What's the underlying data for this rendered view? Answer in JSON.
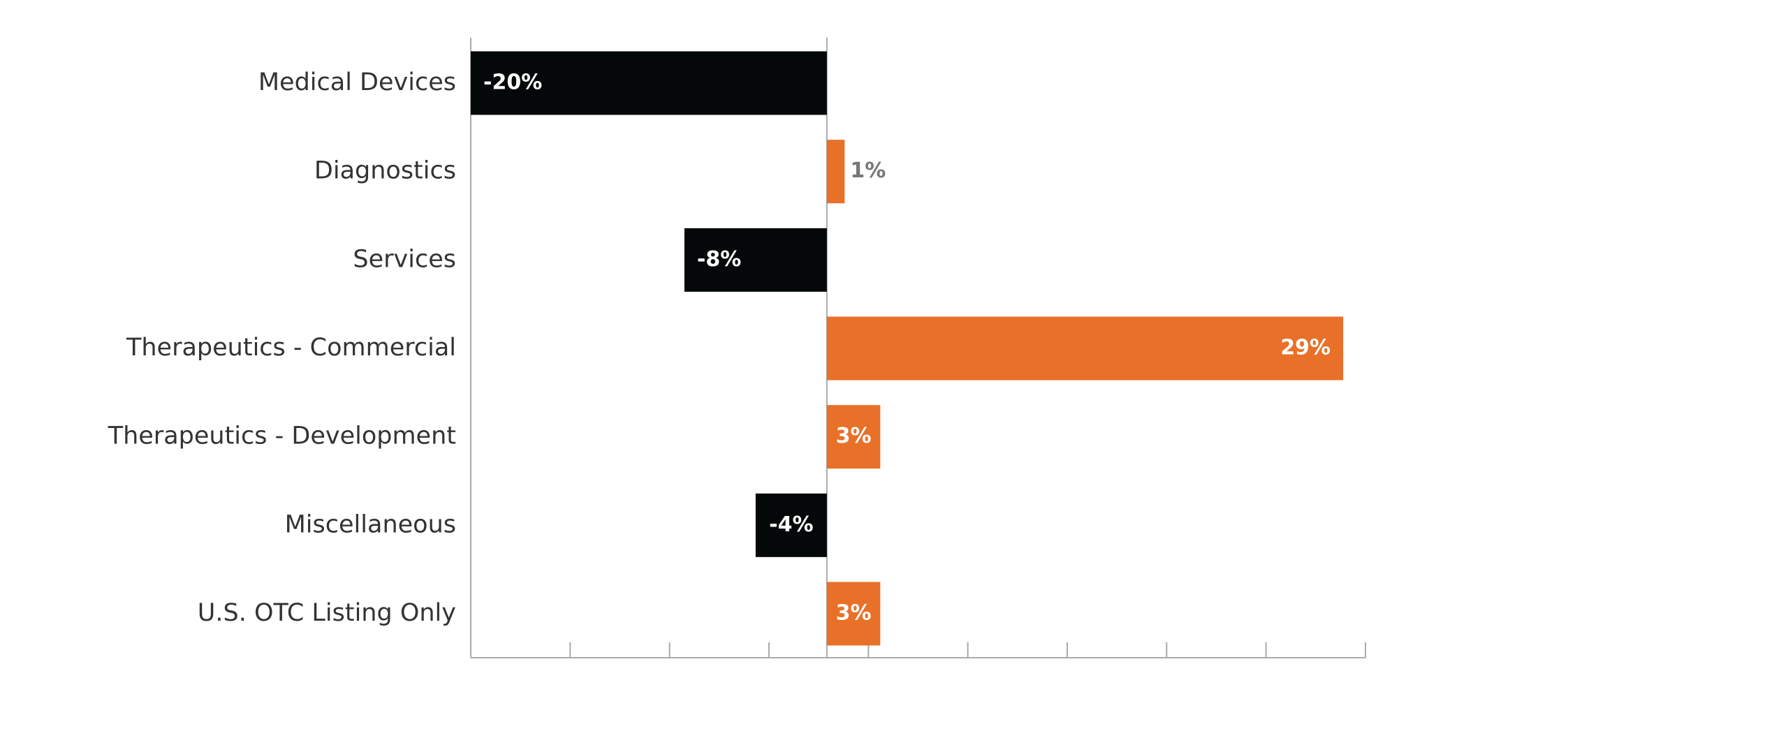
{
  "chart_data": {
    "type": "bar",
    "orientation": "horizontal",
    "categories": [
      "Medical Devices",
      "Diagnostics",
      "Services",
      "Therapeutics - Commercial",
      "Therapeutics - Development",
      "Miscellaneous",
      "U.S. OTC Listing Only"
    ],
    "values": [
      -20,
      1,
      -8,
      29,
      3,
      -4,
      3
    ],
    "value_labels": [
      "-20%",
      "1%",
      "-8%",
      "29%",
      "3%",
      "-4%",
      "3%"
    ],
    "colors": [
      "#050809",
      "#e87028",
      "#050809",
      "#e87028",
      "#e87028",
      "#050809",
      "#e87028"
    ],
    "xlim": [
      -20,
      30.25
    ]
  }
}
